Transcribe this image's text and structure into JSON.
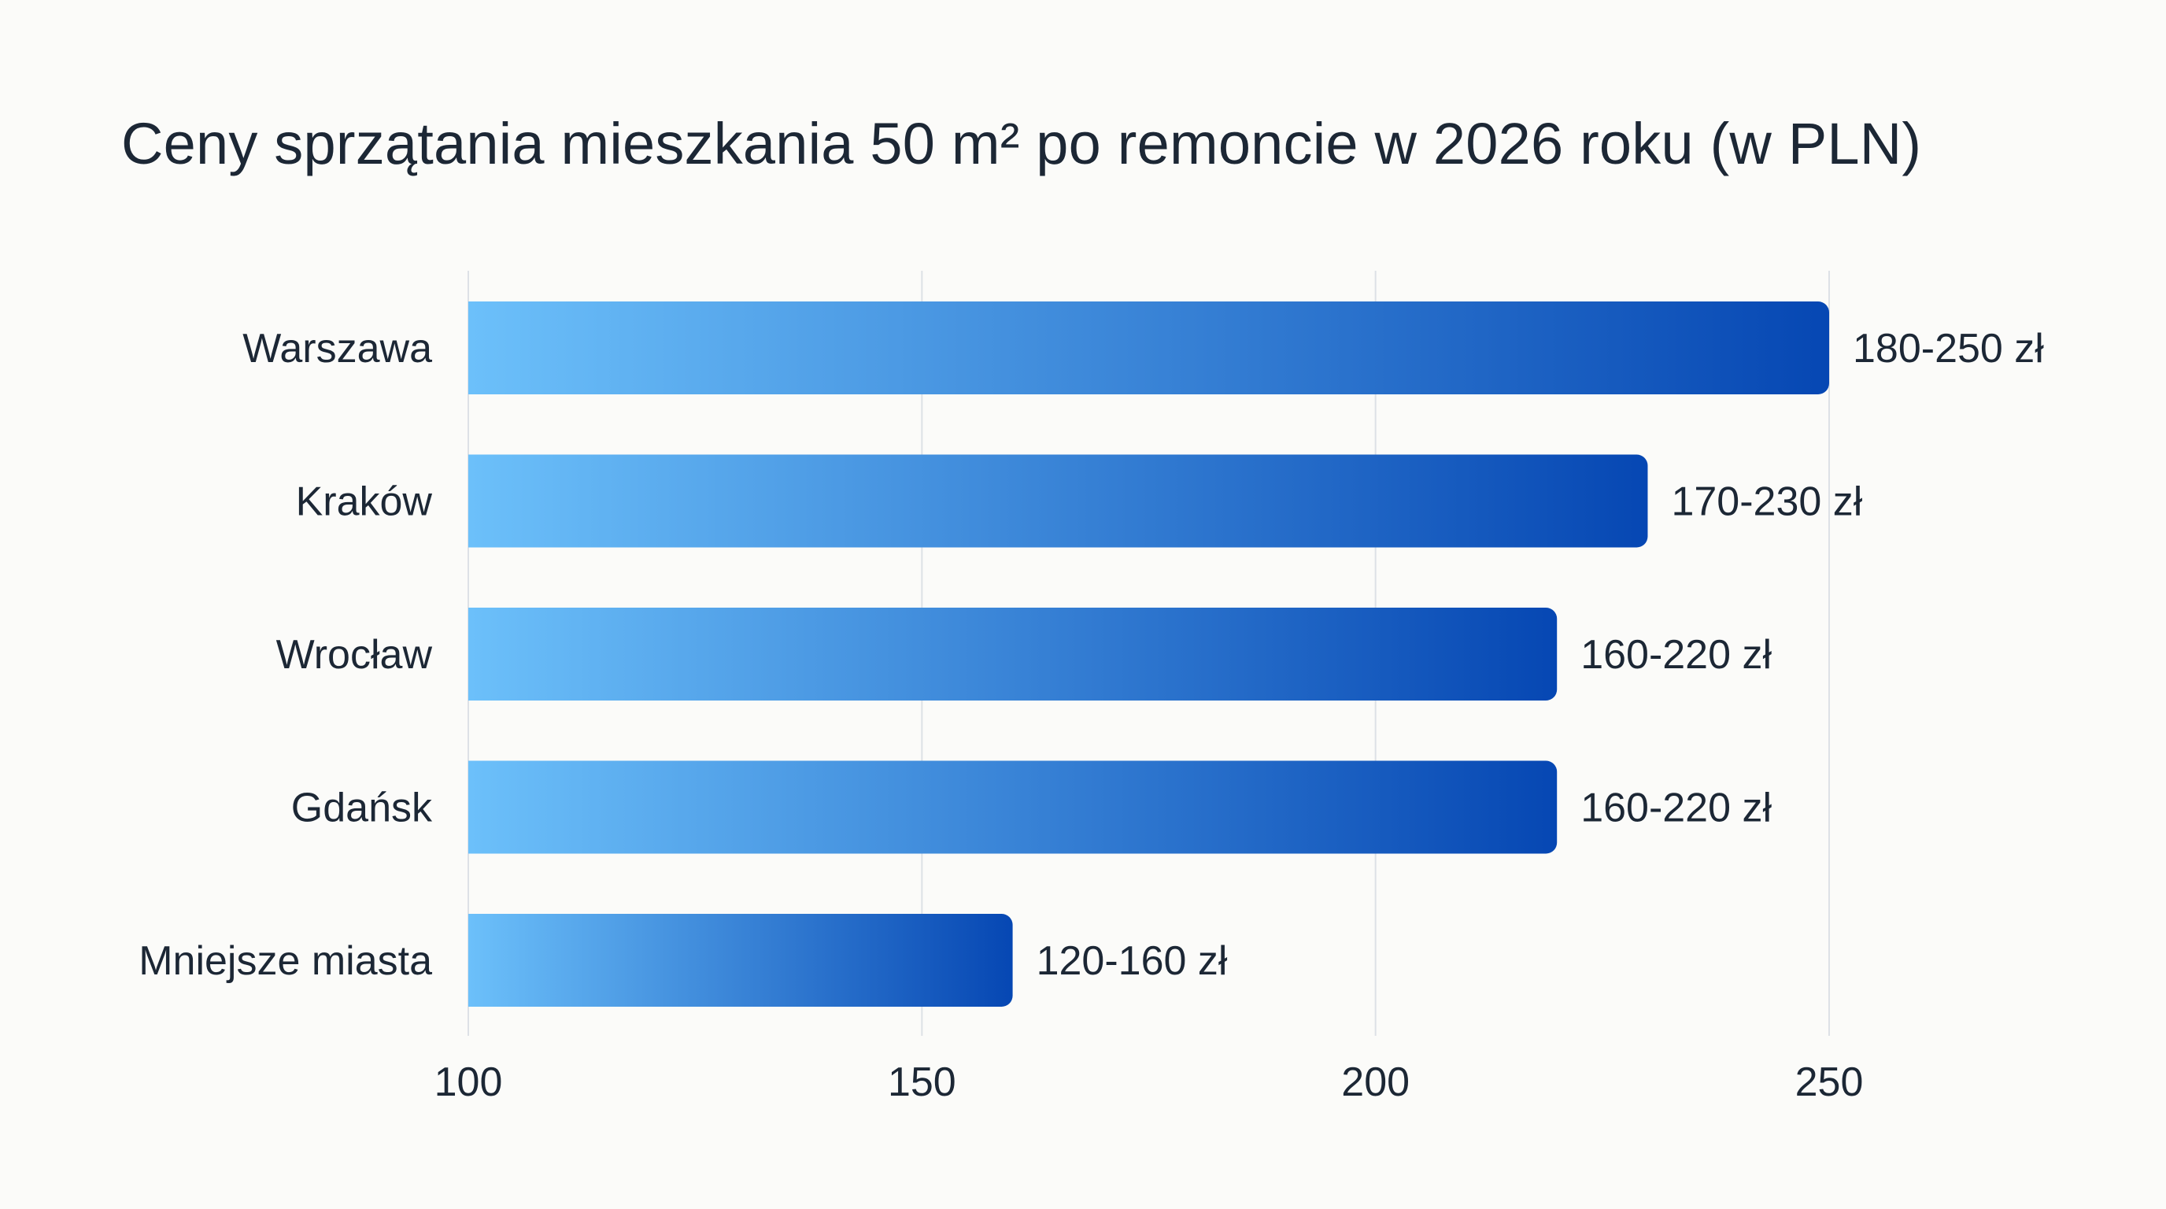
{
  "chart_data": {
    "type": "bar",
    "orientation": "horizontal",
    "title": "Ceny sprzątania mieszkania 50 m² po remoncie w 2026 roku (w PLN)",
    "xlabel": "",
    "ylabel": "",
    "categories": [
      "Warszawa",
      "Kraków",
      "Wrocław",
      "Gdańsk",
      "Mniejsze miasta"
    ],
    "ranges": [
      [
        180,
        250
      ],
      [
        170,
        230
      ],
      [
        160,
        220
      ],
      [
        160,
        220
      ],
      [
        120,
        160
      ]
    ],
    "values": [
      250,
      230,
      220,
      220,
      160
    ],
    "data_labels": [
      "180-250 zł",
      "170-230 zł",
      "160-220 zł",
      "160-220 zł",
      "120-160 zł"
    ],
    "xlim": [
      100,
      250
    ],
    "xticks": [
      "100",
      "150",
      "200",
      "250"
    ],
    "grid": "vertical",
    "legend": "none",
    "colors": {
      "gradient_start": "#6cc0fa",
      "gradient_end": "#0647b3",
      "grid": "#dde1e6",
      "text": "#1c2735",
      "background": "#fbfbf9"
    }
  }
}
